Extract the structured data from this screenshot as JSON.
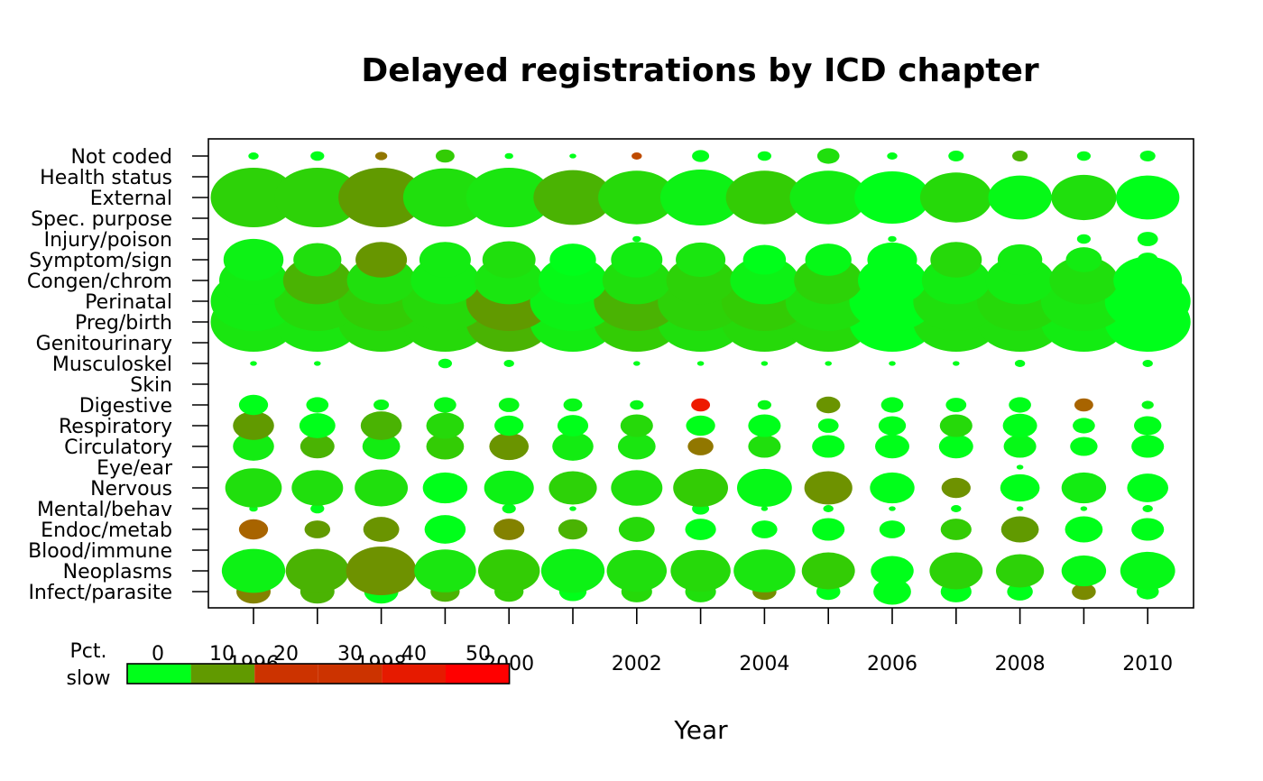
{
  "chart_data": {
    "type": "bubble",
    "title": "Delayed registrations by ICD chapter",
    "xlabel": "Year",
    "ylabel": "",
    "x_ticks": [
      1996,
      1998,
      2000,
      2002,
      2004,
      2006,
      2008,
      2010
    ],
    "years": [
      1996,
      1997,
      1998,
      1999,
      2000,
      2001,
      2002,
      2003,
      2004,
      2005,
      2006,
      2007,
      2008,
      2009,
      2010
    ],
    "categories": [
      "Infect/parasite",
      "Neoplasms",
      "Blood/immune",
      "Endoc/metab",
      "Mental/behav",
      "Nervous",
      "Eye/ear",
      "Circulatory",
      "Respiratory",
      "Digestive",
      "Skin",
      "Musculoskel",
      "Genitourinary",
      "Preg/birth",
      "Perinatal",
      "Congen/chrom",
      "Symptom/sign",
      "Injury/poison",
      "Spec. purpose",
      "External",
      "Health status",
      "Not coded"
    ],
    "legend": {
      "title_line1": "Pct.",
      "title_line2": "slow",
      "labels": [
        "0",
        "10",
        "20",
        "30",
        "40",
        "50"
      ],
      "colors": [
        "#00ff1a",
        "#619a00",
        "#cc3300",
        "#cc3300",
        "#e61a00",
        "#ff0000"
      ],
      "placement": "bottom-left"
    },
    "series": [
      {
        "name": "Infect/parasite",
        "size": [
          2.0,
          2.0,
          2.0,
          1.7,
          1.7,
          1.6,
          1.8,
          1.8,
          1.4,
          1.4,
          2.2,
          1.8,
          1.5,
          1.4,
          1.3
        ],
        "pct_slow": [
          22,
          10,
          0,
          10,
          8,
          0,
          6,
          5,
          18,
          0,
          0,
          0,
          0,
          20,
          0
        ]
      },
      {
        "name": "Neoplasms",
        "size": [
          3.7,
          3.7,
          4.1,
          3.6,
          3.6,
          3.7,
          3.5,
          3.5,
          3.6,
          3.1,
          2.5,
          3.1,
          2.8,
          2.6,
          3.2
        ],
        "pct_slow": [
          2,
          10,
          16,
          4,
          8,
          2,
          5,
          6,
          4,
          8,
          0,
          7,
          7,
          1,
          1
        ]
      },
      {
        "name": "Blood/immune",
        "size": [
          0,
          0,
          0,
          0,
          0,
          0,
          0,
          0,
          0,
          0,
          0,
          0,
          0,
          0,
          0
        ],
        "pct_slow": [
          0,
          0,
          0,
          0,
          0,
          0,
          0,
          0,
          0,
          0,
          0,
          0,
          0,
          0,
          0
        ]
      },
      {
        "name": "Endoc/metab",
        "size": [
          1.7,
          1.5,
          2.1,
          2.4,
          1.8,
          1.7,
          2.1,
          1.8,
          1.5,
          1.9,
          1.5,
          1.8,
          2.2,
          2.2,
          1.9
        ],
        "pct_slow": [
          30,
          12,
          15,
          0,
          22,
          10,
          6,
          0,
          0,
          0,
          0,
          8,
          12,
          0,
          0
        ]
      },
      {
        "name": "Mental/behav",
        "size": [
          0.5,
          0.8,
          0,
          0,
          0.8,
          0.4,
          0,
          1.0,
          0.4,
          0.6,
          0.4,
          0.6,
          0.4,
          0.4,
          0.6
        ],
        "pct_slow": [
          0,
          0,
          0,
          0,
          0,
          0,
          0,
          0,
          0,
          0,
          0,
          0,
          0,
          0,
          0
        ]
      },
      {
        "name": "Nervous",
        "size": [
          3.3,
          3.0,
          3.1,
          2.6,
          2.9,
          2.8,
          3.0,
          3.2,
          3.2,
          2.8,
          2.6,
          1.7,
          2.3,
          2.6,
          2.4
        ],
        "pct_slow": [
          5,
          5,
          5,
          0,
          2,
          7,
          5,
          8,
          1,
          16,
          0,
          16,
          0,
          3,
          0
        ]
      },
      {
        "name": "Eye/ear",
        "size": [
          0,
          0,
          0,
          0,
          0,
          0,
          0,
          0,
          0,
          0,
          0,
          0,
          0.4,
          0,
          0
        ],
        "pct_slow": [
          0,
          0,
          0,
          0,
          0,
          0,
          0,
          0,
          0,
          0,
          0,
          0,
          0,
          0,
          0
        ]
      },
      {
        "name": "Circulatory",
        "size": [
          2.4,
          2.0,
          2.2,
          2.2,
          2.3,
          2.4,
          2.2,
          1.5,
          1.9,
          1.9,
          2.0,
          2.0,
          1.9,
          1.6,
          1.9
        ],
        "pct_slow": [
          3,
          10,
          3,
          8,
          15,
          3,
          4,
          25,
          5,
          0,
          0,
          0,
          1,
          0,
          0
        ]
      },
      {
        "name": "Respiratory",
        "size": [
          2.4,
          2.1,
          2.4,
          2.2,
          1.7,
          1.8,
          1.9,
          1.7,
          1.9,
          1.2,
          1.6,
          1.9,
          2.0,
          1.3,
          1.6
        ],
        "pct_slow": [
          12,
          0,
          10,
          6,
          0,
          0,
          6,
          0,
          0,
          0,
          0,
          6,
          0,
          0,
          0
        ]
      },
      {
        "name": "Digestive",
        "size": [
          1.7,
          1.3,
          0.9,
          1.3,
          1.2,
          1.1,
          0.8,
          1.1,
          0.8,
          1.4,
          1.3,
          1.2,
          1.3,
          1.1,
          0.7
        ],
        "pct_slow": [
          0,
          0,
          1,
          1,
          1,
          1,
          1,
          45,
          1,
          15,
          0,
          0,
          0,
          30,
          1
        ]
      },
      {
        "name": "Skin",
        "size": [
          0,
          0,
          0,
          0,
          0,
          0,
          0,
          0,
          0,
          0,
          0,
          0,
          0,
          0,
          0
        ],
        "pct_slow": [
          0,
          0,
          0,
          0,
          0,
          0,
          0,
          0,
          0,
          0,
          0,
          0,
          0,
          0,
          0
        ]
      },
      {
        "name": "Musculoskel",
        "size": [
          0.4,
          0.4,
          0,
          0.8,
          0.6,
          0,
          0.4,
          0.4,
          0.4,
          0.4,
          0.4,
          0.4,
          0.6,
          0,
          0.6
        ],
        "pct_slow": [
          0,
          0,
          0,
          0,
          0,
          0,
          0,
          0,
          0,
          0,
          0,
          0,
          0,
          0,
          0
        ]
      },
      {
        "name": "Genitourinary",
        "size": [
          0.6,
          0.6,
          0.4,
          0.4,
          0.4,
          0,
          1.0,
          0,
          0.6,
          0.6,
          0.6,
          0,
          0.4,
          0,
          0.4
        ],
        "pct_slow": [
          0,
          0,
          0,
          0,
          0,
          0,
          50,
          0,
          0,
          0,
          0,
          0,
          0,
          0,
          0
        ]
      },
      {
        "name": "Preg/birth",
        "size": [
          5.0,
          5.0,
          5.0,
          5.0,
          5.0,
          5.0,
          5.0,
          5.0,
          5.0,
          5.0,
          5.0,
          5.0,
          5.0,
          5.0,
          5.0
        ],
        "pct_slow": [
          4,
          4,
          6,
          6,
          10,
          3,
          8,
          5,
          6,
          6,
          0,
          5,
          5,
          3,
          0
        ]
      },
      {
        "name": "Perinatal",
        "size": [
          5.0,
          5.0,
          5.0,
          5.0,
          5.0,
          5.0,
          5.0,
          5.0,
          5.0,
          5.0,
          5.0,
          5.0,
          5.0,
          5.0,
          5.0
        ],
        "pct_slow": [
          3,
          6,
          8,
          6,
          12,
          2,
          10,
          7,
          8,
          5,
          0,
          5,
          6,
          4,
          0
        ]
      },
      {
        "name": "Congen/chrom",
        "size": [
          4.0,
          4.0,
          4.0,
          4.0,
          4.0,
          4.0,
          4.0,
          4.0,
          4.0,
          4.0,
          4.0,
          4.0,
          4.0,
          4.0,
          4.0
        ],
        "pct_slow": [
          3,
          10,
          5,
          3,
          4,
          1,
          5,
          7,
          2,
          7,
          0,
          3,
          3,
          5,
          0
        ]
      },
      {
        "name": "Symptom/sign",
        "size": [
          3.5,
          2.8,
          3.0,
          3.0,
          3.1,
          2.7,
          3.0,
          2.9,
          2.5,
          2.7,
          2.9,
          3.0,
          2.6,
          2.1,
          1.2
        ],
        "pct_slow": [
          2,
          5,
          14,
          3,
          5,
          0,
          3,
          4,
          0,
          1,
          0,
          6,
          3,
          3,
          0
        ]
      },
      {
        "name": "Injury/poison",
        "size": [
          0,
          0,
          0,
          0,
          0,
          0,
          0.5,
          0,
          0,
          0,
          0.5,
          0,
          0,
          0.8,
          1.2
        ],
        "pct_slow": [
          0,
          0,
          0,
          0,
          0,
          0,
          0,
          0,
          0,
          0,
          0,
          0,
          0,
          0,
          0
        ]
      },
      {
        "name": "Spec. purpose",
        "size": [
          0,
          0,
          0,
          0,
          0,
          0,
          0,
          0,
          0,
          0,
          0,
          0,
          0,
          0,
          0
        ],
        "pct_slow": [
          0,
          0,
          0,
          0,
          0,
          0,
          0,
          0,
          0,
          0,
          0,
          0,
          0,
          0,
          0
        ]
      },
      {
        "name": "External",
        "size": [
          5.0,
          5.0,
          5.0,
          4.9,
          5.0,
          4.6,
          4.5,
          4.7,
          4.5,
          4.5,
          4.4,
          4.2,
          3.7,
          3.8,
          3.7
        ],
        "pct_slow": [
          7,
          7,
          12,
          5,
          4,
          10,
          6,
          2,
          8,
          3,
          0,
          6,
          1,
          5,
          0
        ]
      },
      {
        "name": "Health status",
        "size": [
          0,
          0,
          0,
          0,
          0,
          0,
          0,
          0,
          0,
          0,
          0,
          0,
          0,
          0,
          0
        ],
        "pct_slow": [
          0,
          0,
          0,
          0,
          0,
          0,
          0,
          0,
          0,
          0,
          0,
          0,
          0,
          0,
          0
        ]
      },
      {
        "name": "Not coded",
        "size": [
          0.6,
          0.8,
          0.7,
          1.1,
          0.5,
          0.4,
          0.6,
          1.0,
          0.8,
          1.3,
          0.6,
          0.9,
          0.9,
          0.8,
          0.9
        ],
        "pct_slow": [
          0,
          0,
          25,
          8,
          0,
          0,
          35,
          0,
          0,
          5,
          0,
          0,
          10,
          0,
          0
        ]
      }
    ]
  }
}
